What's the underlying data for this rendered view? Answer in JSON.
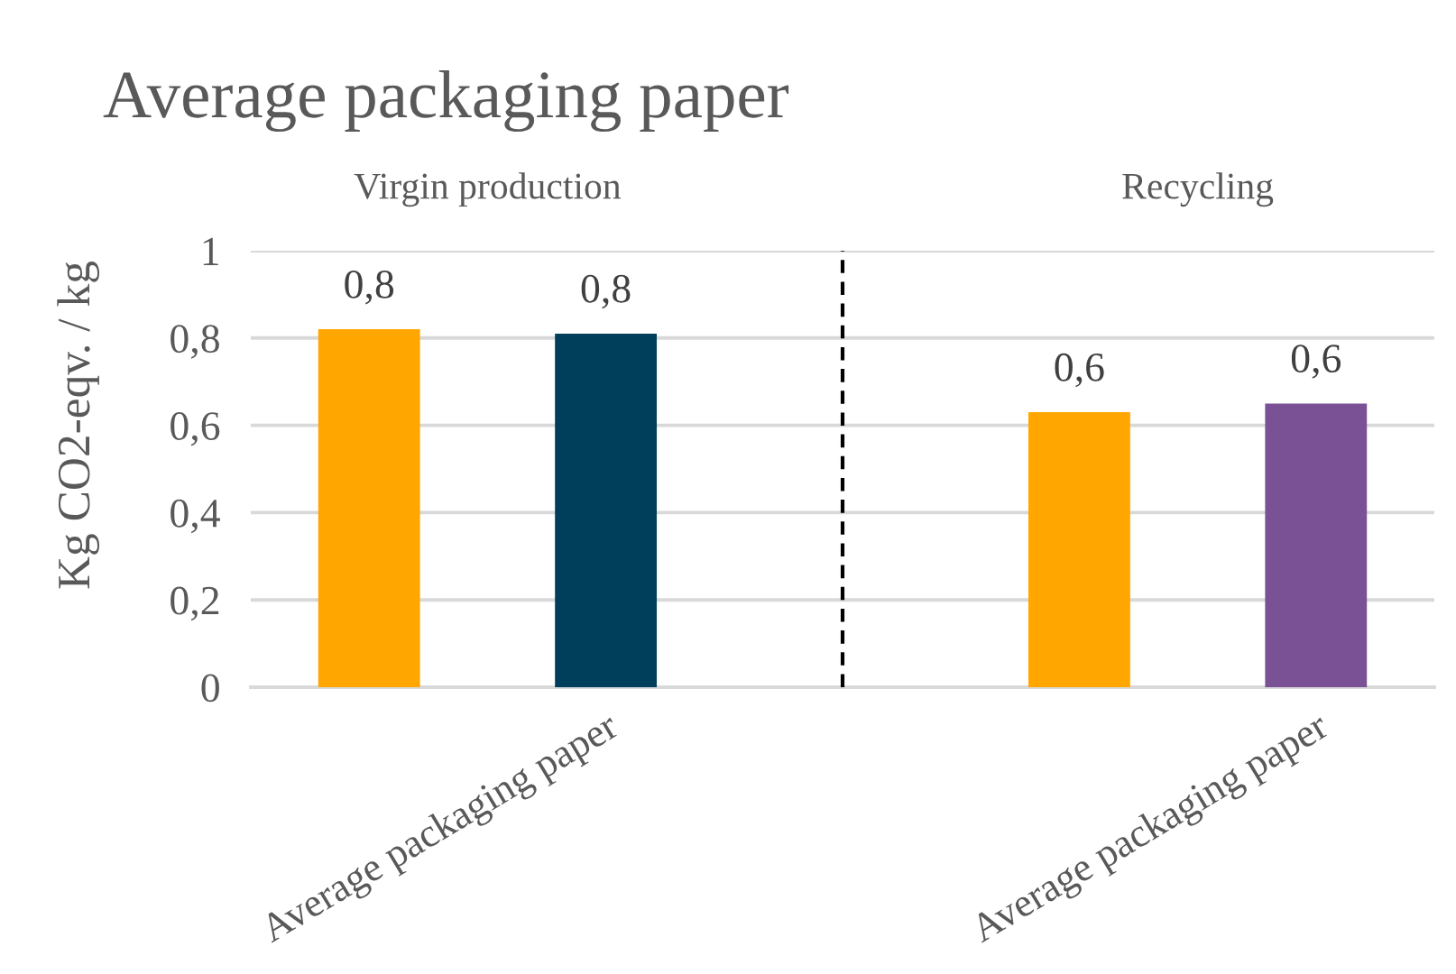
{
  "chart_data": {
    "type": "bar",
    "title": "Average packaging paper",
    "ylabel": "Kg CO2-eqv. / kg",
    "annotations": [
      "Virgin production",
      "Recycling"
    ],
    "categories": [
      null,
      "Average packaging paper",
      null,
      null,
      "Average packaging paper"
    ],
    "values": [
      0.82,
      0.81,
      null,
      0.63,
      0.65
    ],
    "colors": [
      "#ffa600",
      "#003f5c",
      null,
      "#ffa600",
      "#7a5195"
    ],
    "value_labels": [
      "0,8",
      "0,8",
      null,
      "0,6",
      "0,6"
    ],
    "ylim": [
      0,
      1
    ],
    "yticks": [
      0,
      {
        "value": 0.2,
        "label": "0,2"
      },
      {
        "value": 0.4,
        "label": "0,4"
      },
      {
        "value": 0.6,
        "label": "0,6"
      },
      {
        "value": 0.8,
        "label": "0,8"
      },
      1
    ],
    "grid": "y"
  }
}
